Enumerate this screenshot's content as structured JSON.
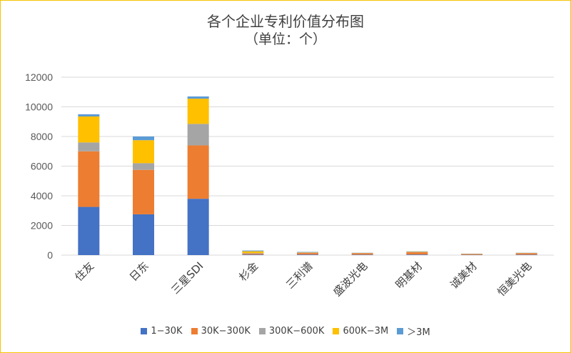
{
  "chart_data": {
    "type": "bar",
    "stacked": true,
    "title": "各个企业专利价值分布图",
    "subtitle": "（单位：个）",
    "categories": [
      "住友",
      "日东",
      "三星SDI",
      "杉金",
      "三利谱",
      "盛波光电",
      "明基材",
      "诚美材",
      "恒美光电"
    ],
    "series": [
      {
        "name": "1−30K",
        "color": "#4472c4",
        "values": [
          3250,
          2750,
          3800,
          40,
          40,
          30,
          40,
          20,
          30
        ]
      },
      {
        "name": "30K−300K",
        "color": "#ed7d31",
        "values": [
          3750,
          3000,
          3600,
          60,
          100,
          90,
          150,
          50,
          90
        ]
      },
      {
        "name": "300K−600K",
        "color": "#a5a5a5",
        "values": [
          600,
          450,
          1450,
          40,
          40,
          20,
          40,
          10,
          20
        ]
      },
      {
        "name": "600K−3M",
        "color": "#ffc000",
        "values": [
          1750,
          1550,
          1700,
          120,
          20,
          10,
          20,
          10,
          10
        ]
      },
      {
        "name": "＞3M",
        "color": "#5b9bd5",
        "values": [
          150,
          250,
          150,
          50,
          20,
          10,
          10,
          10,
          10
        ]
      }
    ],
    "yticks": [
      0,
      2000,
      4000,
      6000,
      8000,
      10000,
      12000
    ],
    "ylim": [
      0,
      12000
    ],
    "grid": true,
    "legend_position": "bottom"
  }
}
